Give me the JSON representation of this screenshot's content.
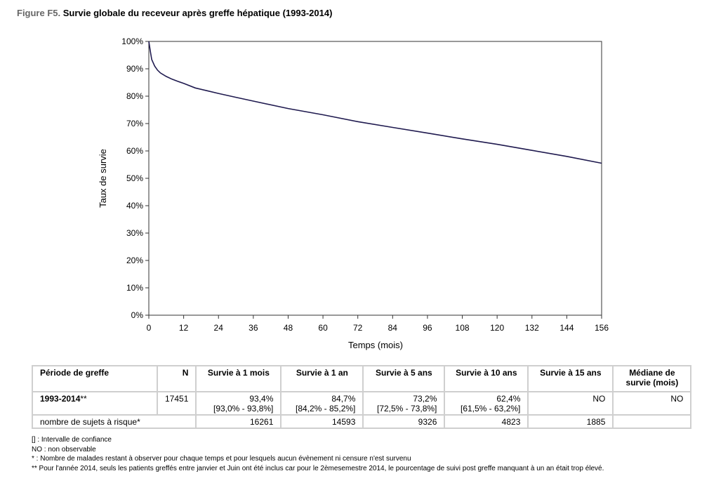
{
  "figure": {
    "label": "Figure F5.",
    "title": "Survie globale du receveur après greffe hépatique (1993-2014)"
  },
  "chart_data": {
    "type": "line",
    "xlabel": "Temps (mois)",
    "ylabel": "Taux de survie",
    "xlim": [
      0,
      156
    ],
    "ylim": [
      0,
      100
    ],
    "x_ticks": [
      0,
      12,
      24,
      36,
      48,
      60,
      72,
      84,
      96,
      108,
      120,
      132,
      144,
      156
    ],
    "y_ticks": [
      "0%",
      "10%",
      "20%",
      "30%",
      "40%",
      "50%",
      "60%",
      "70%",
      "80%",
      "90%",
      "100%"
    ],
    "grid": false,
    "series": [
      {
        "color": "#1f1a4f",
        "x": [
          0,
          0.5,
          1,
          2,
          3,
          4,
          6,
          8,
          10,
          12,
          16,
          20,
          24,
          30,
          36,
          48,
          60,
          72,
          84,
          96,
          108,
          120,
          132,
          144,
          156
        ],
        "y": [
          100,
          96.5,
          93.4,
          91.0,
          89.5,
          88.5,
          87.2,
          86.2,
          85.4,
          84.7,
          83.0,
          82.0,
          81.0,
          79.6,
          78.2,
          75.5,
          73.2,
          70.7,
          68.6,
          66.5,
          64.4,
          62.4,
          60.2,
          58.0,
          55.5
        ]
      }
    ]
  },
  "table": {
    "headers": [
      "Période de greffe",
      "N",
      "Survie à 1 mois",
      "Survie à 1 an",
      "Survie à 5 ans",
      "Survie à 10 ans",
      "Survie à 15 ans",
      "Médiane de survie (mois)"
    ],
    "row1": {
      "period": "1993-2014",
      "period_suffix": "**",
      "n": "17451",
      "m1": "93,4%",
      "m1_ci": "[93,0% - 93,8%]",
      "y1": "84,7%",
      "y1_ci": "[84,2% - 85,2%]",
      "y5": "73,2%",
      "y5_ci": "[72,5% - 73,8%]",
      "y10": "62,4%",
      "y10_ci": "[61,5% - 63,2%]",
      "y15": "NO",
      "median": "NO"
    },
    "row2": {
      "label": "nombre de sujets à risque*",
      "m1": "16261",
      "y1": "14593",
      "y5": "9326",
      "y10": "4823",
      "y15": "1885"
    }
  },
  "notes": [
    "[] : Intervalle de confiance",
    "NO : non observable",
    "* : Nombre de malades restant à observer pour chaque temps et pour lesquels aucun évènement ni censure n'est survenu",
    "** Pour l'année 2014, seuls les patients greffés entre janvier et Juin ont été inclus car pour le 2èmesemestre 2014, le pourcentage de suivi post greffe manquant à un an était trop élevé."
  ]
}
